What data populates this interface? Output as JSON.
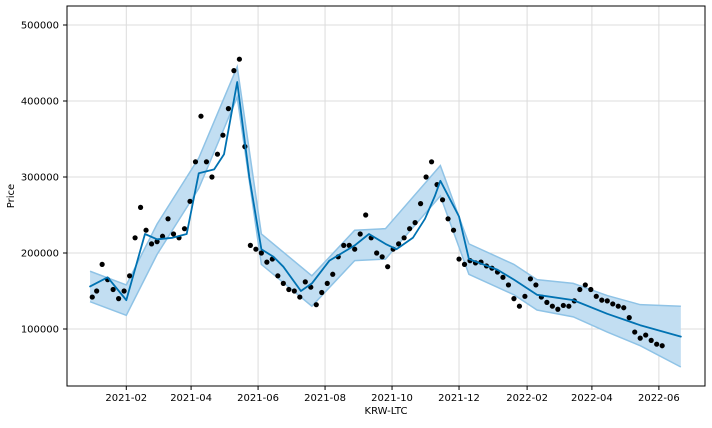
{
  "chart_data": {
    "type": "scatter",
    "title": "",
    "xlabel": "KRW-LTC",
    "ylabel": "Price",
    "x_ticks": [
      "2021-02",
      "2021-04",
      "2021-06",
      "2021-08",
      "2021-10",
      "2021-12",
      "2022-02",
      "2022-04",
      "2022-06"
    ],
    "y_ticks": [
      "100000",
      "200000",
      "300000",
      "400000",
      "500000"
    ],
    "xlim": [
      "2020-12-09",
      "2022-07-13"
    ],
    "ylim": [
      25000,
      525000
    ],
    "grid": true,
    "legend": "none",
    "colors": {
      "observed": "#000000",
      "forecast": "#0072b2",
      "interval_fill": "#bfdcf1",
      "interval_edge": "#8fc3e6",
      "grid": "#dcdcdc"
    },
    "series": [
      {
        "kind": "observed",
        "type": "scatter",
        "x": [
          "2021-01-01",
          "2021-01-05",
          "2021-01-10",
          "2021-01-15",
          "2021-01-20",
          "2021-01-25",
          "2021-01-30",
          "2021-02-04",
          "2021-02-09",
          "2021-02-14",
          "2021-02-19",
          "2021-02-24",
          "2021-03-01",
          "2021-03-06",
          "2021-03-11",
          "2021-03-16",
          "2021-03-21",
          "2021-03-26",
          "2021-03-31",
          "2021-04-05",
          "2021-04-10",
          "2021-04-15",
          "2021-04-20",
          "2021-04-25",
          "2021-04-30",
          "2021-05-05",
          "2021-05-10",
          "2021-05-15",
          "2021-05-20",
          "2021-05-25",
          "2021-05-30",
          "2021-06-04",
          "2021-06-09",
          "2021-06-14",
          "2021-06-19",
          "2021-06-24",
          "2021-06-29",
          "2021-07-04",
          "2021-07-09",
          "2021-07-14",
          "2021-07-19",
          "2021-07-24",
          "2021-07-29",
          "2021-08-03",
          "2021-08-08",
          "2021-08-13",
          "2021-08-18",
          "2021-08-23",
          "2021-08-28",
          "2021-09-02",
          "2021-09-07",
          "2021-09-12",
          "2021-09-17",
          "2021-09-22",
          "2021-09-27",
          "2021-10-02",
          "2021-10-07",
          "2021-10-12",
          "2021-10-17",
          "2021-10-22",
          "2021-10-27",
          "2021-11-01",
          "2021-11-06",
          "2021-11-11",
          "2021-11-16",
          "2021-11-21",
          "2021-11-26",
          "2021-12-01",
          "2021-12-06",
          "2021-12-11",
          "2021-12-16",
          "2021-12-21",
          "2021-12-26",
          "2021-12-31",
          "2022-01-05",
          "2022-01-10",
          "2022-01-15",
          "2022-01-20",
          "2022-01-25",
          "2022-01-30",
          "2022-02-04",
          "2022-02-09",
          "2022-02-14",
          "2022-02-19",
          "2022-02-24",
          "2022-03-01",
          "2022-03-06",
          "2022-03-11",
          "2022-03-16",
          "2022-03-21",
          "2022-03-26",
          "2022-03-31",
          "2022-04-05",
          "2022-04-10",
          "2022-04-15",
          "2022-04-20",
          "2022-04-25",
          "2022-04-30",
          "2022-05-05",
          "2022-05-10",
          "2022-05-15",
          "2022-05-20",
          "2022-05-25",
          "2022-05-30",
          "2022-06-04"
        ],
        "y": [
          142000,
          150000,
          185000,
          165000,
          152000,
          140000,
          150000,
          170000,
          220000,
          260000,
          230000,
          212000,
          215000,
          222000,
          245000,
          225000,
          220000,
          232000,
          268000,
          320000,
          380000,
          320000,
          300000,
          330000,
          355000,
          390000,
          440000,
          455000,
          340000,
          210000,
          205000,
          200000,
          188000,
          192000,
          170000,
          160000,
          152000,
          150000,
          142000,
          162000,
          155000,
          132000,
          148000,
          160000,
          172000,
          195000,
          210000,
          210000,
          205000,
          225000,
          250000,
          220000,
          200000,
          195000,
          182000,
          205000,
          212000,
          220000,
          232000,
          240000,
          265000,
          300000,
          320000,
          290000,
          270000,
          245000,
          230000,
          192000,
          185000,
          190000,
          187000,
          188000,
          183000,
          180000,
          175000,
          168000,
          158000,
          140000,
          130000,
          143000,
          166000,
          158000,
          142000,
          135000,
          130000,
          126000,
          131000,
          130000,
          137000,
          152000,
          158000,
          152000,
          143000,
          138000,
          137000,
          133000,
          130000,
          128000,
          115000,
          96000,
          88000,
          92000,
          85000,
          80000,
          78000
        ]
      },
      {
        "kind": "forecast",
        "type": "line",
        "x": [
          "2020-12-30",
          "2021-01-15",
          "2021-02-01",
          "2021-02-18",
          "2021-03-01",
          "2021-03-15",
          "2021-03-28",
          "2021-04-08",
          "2021-04-22",
          "2021-05-01",
          "2021-05-13",
          "2021-05-24",
          "2021-06-04",
          "2021-06-15",
          "2021-06-24",
          "2021-07-10",
          "2021-07-20",
          "2021-08-05",
          "2021-08-28",
          "2021-09-10",
          "2021-09-25",
          "2021-10-05",
          "2021-10-20",
          "2021-10-31",
          "2021-11-09",
          "2021-11-14",
          "2021-12-01",
          "2021-12-10",
          "2022-01-05",
          "2022-01-20",
          "2022-02-10",
          "2022-03-15",
          "2022-04-15",
          "2022-05-15",
          "2022-06-21"
        ],
        "y": [
          156000,
          168000,
          138000,
          225000,
          218000,
          220000,
          225000,
          305000,
          310000,
          330000,
          425000,
          300000,
          205000,
          195000,
          182000,
          150000,
          160000,
          190000,
          210000,
          225000,
          212000,
          205000,
          220000,
          245000,
          275000,
          295000,
          248000,
          192000,
          178000,
          165000,
          145000,
          138000,
          120000,
          105000,
          90000
        ]
      },
      {
        "kind": "uncertainty_interval",
        "type": "area",
        "x": [
          "2020-12-30",
          "2021-02-01",
          "2021-03-01",
          "2021-04-08",
          "2021-05-13",
          "2021-06-04",
          "2021-07-20",
          "2021-08-28",
          "2021-09-25",
          "2021-11-14",
          "2021-12-10",
          "2022-01-20",
          "2022-02-10",
          "2022-03-15",
          "2022-04-15",
          "2022-05-15",
          "2022-06-21"
        ],
        "y_lower": [
          136000,
          118000,
          198000,
          285000,
          405000,
          185000,
          130000,
          190000,
          192000,
          275000,
          172000,
          145000,
          125000,
          116000,
          96000,
          78000,
          50000
        ],
        "y_upper": [
          176000,
          158000,
          238000,
          325000,
          445000,
          225000,
          170000,
          230000,
          232000,
          315000,
          212000,
          185000,
          165000,
          160000,
          144000,
          132000,
          130000
        ]
      }
    ]
  }
}
